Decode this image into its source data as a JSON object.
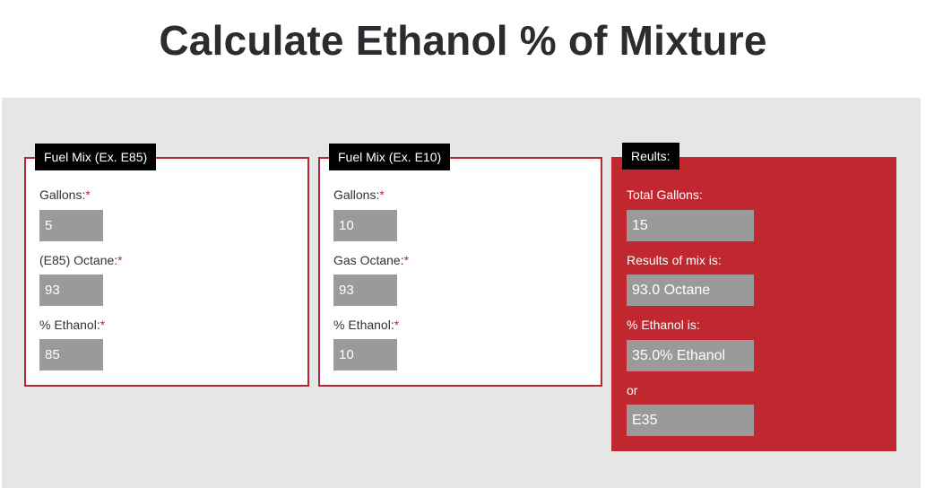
{
  "page": {
    "title": "Calculate Ethanol % of Mixture"
  },
  "panel_e85": {
    "legend": "Fuel Mix (Ex. E85)",
    "gallons_label": "Gallons:",
    "gallons_value": "5",
    "octane_label": "(E85) Octane:",
    "octane_value": "93",
    "ethanol_label": "% Ethanol:",
    "ethanol_value": "85",
    "required_mark": "*"
  },
  "panel_e10": {
    "legend": "Fuel Mix (Ex. E10)",
    "gallons_label": "Gallons:",
    "gallons_value": "10",
    "octane_label": "Gas Octane:",
    "octane_value": "93",
    "ethanol_label": "% Ethanol:",
    "ethanol_value": "10",
    "required_mark": "*"
  },
  "results": {
    "legend": "Reults:",
    "total_gallons_label": "Total Gallons:",
    "total_gallons_value": "15",
    "mix_label": "Results of mix is:",
    "mix_value": "93.0 Octane",
    "ethanol_label": "% Ethanol is:",
    "ethanol_value": "35.0% Ethanol",
    "or_label": "or",
    "e_value": "E35"
  },
  "colors": {
    "accent_red": "#c0272f",
    "field_gray": "#9a9a9a",
    "background_gray": "#e6e6e6"
  }
}
